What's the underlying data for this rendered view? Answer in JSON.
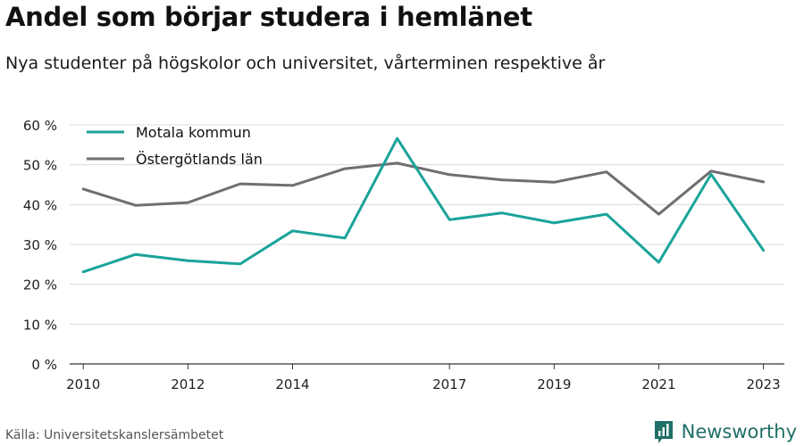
{
  "title": "Andel som börjar studera i hemlänet",
  "subtitle": "Nya studenter på högskolor och universitet, vårterminen respektive år",
  "source": "Källa: Universitetskanslersämbetet",
  "brand": "Newsworthy",
  "colors": {
    "motala": "#1aa39a",
    "ostergotland": "#6e6e73",
    "grid": "#dcdcdc",
    "brand": "#1f6f66"
  },
  "chart_data": {
    "type": "line",
    "x": [
      2010,
      2011,
      2012,
      2013,
      2014,
      2015,
      2016,
      2017,
      2018,
      2019,
      2020,
      2021,
      2022,
      2023
    ],
    "xticks": [
      2010,
      2012,
      2014,
      2017,
      2019,
      2021,
      2023
    ],
    "yticks": [
      0,
      10,
      20,
      30,
      40,
      50,
      60
    ],
    "ytick_labels": [
      "0 %",
      "10 %",
      "20 %",
      "30 %",
      "40 %",
      "50 %",
      "60 %"
    ],
    "ylim": [
      0,
      60
    ],
    "grid": true,
    "legend_position": "top-left",
    "series": [
      {
        "name": "Motala kommun",
        "color": "#1aa39a",
        "values": [
          23.1,
          27.5,
          25.9,
          25.1,
          33.4,
          31.6,
          56.6,
          36.2,
          37.9,
          35.4,
          37.6,
          25.5,
          47.6,
          28.5
        ]
      },
      {
        "name": "Östergötlands län",
        "color": "#6e6e73",
        "values": [
          43.9,
          39.8,
          40.5,
          45.2,
          44.8,
          49.0,
          50.4,
          47.5,
          46.2,
          45.6,
          48.2,
          37.6,
          48.4,
          45.7
        ]
      }
    ]
  }
}
